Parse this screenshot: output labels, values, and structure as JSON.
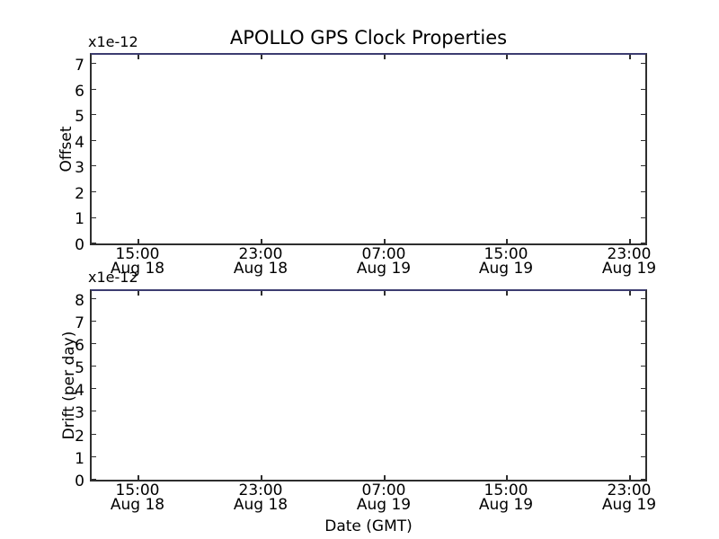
{
  "colors": {
    "background": "#ffffff",
    "spine": "#2e2e2e",
    "top_spine_line": "#3c3c70",
    "text": "#000000"
  },
  "chart_data": [
    {
      "type": "line",
      "title": "APOLLO GPS Clock Properties",
      "xlabel": "",
      "ylabel": "Offset",
      "offset_text": "x1e-12",
      "ylim": [
        0,
        7.5
      ],
      "y_ticks": [
        "0",
        "1",
        "2",
        "3",
        "4",
        "5",
        "6",
        "7"
      ],
      "x_ticks": [
        {
          "time": "15:00",
          "date": "Aug 18"
        },
        {
          "time": "23:00",
          "date": "Aug 18"
        },
        {
          "time": "07:00",
          "date": "Aug 19"
        },
        {
          "time": "15:00",
          "date": "Aug 19"
        },
        {
          "time": "23:00",
          "date": "Aug 19"
        }
      ],
      "series": [],
      "grid": false,
      "legend": null,
      "note": "no data points visible; a dark navy line runs along the top axis edge"
    },
    {
      "type": "line",
      "title": "",
      "xlabel": "Date (GMT)",
      "ylabel": "Drift (per day)",
      "offset_text": "x1e-12",
      "ylim": [
        0,
        8.5
      ],
      "y_ticks": [
        "0",
        "1",
        "2",
        "3",
        "4",
        "5",
        "6",
        "7",
        "8"
      ],
      "x_ticks": [
        {
          "time": "15:00",
          "date": "Aug 18"
        },
        {
          "time": "23:00",
          "date": "Aug 18"
        },
        {
          "time": "07:00",
          "date": "Aug 19"
        },
        {
          "time": "15:00",
          "date": "Aug 19"
        },
        {
          "time": "23:00",
          "date": "Aug 19"
        }
      ],
      "series": [],
      "grid": false,
      "legend": null,
      "note": "no data points visible; a dark navy line runs along the top axis edge"
    }
  ]
}
